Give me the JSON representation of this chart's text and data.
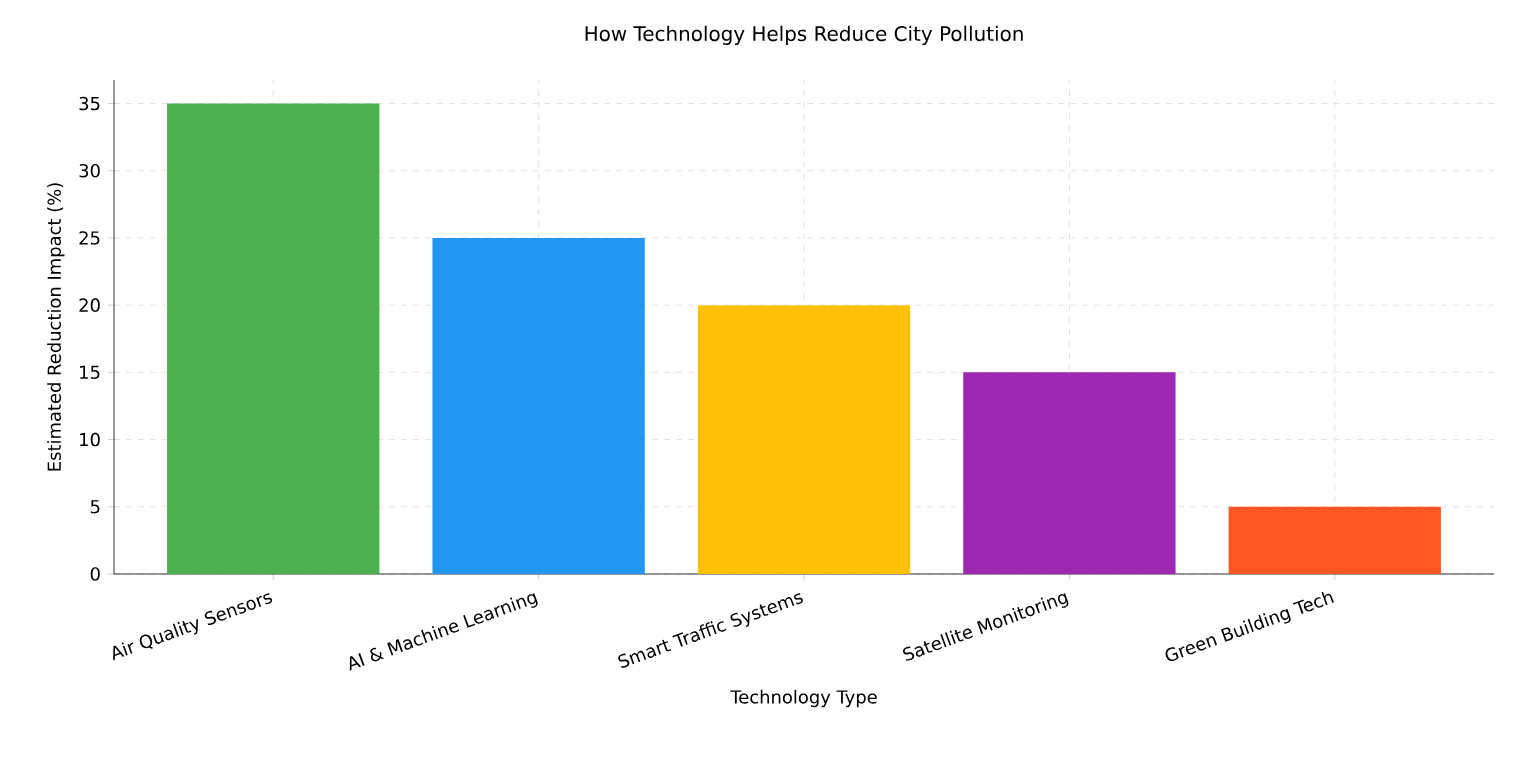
{
  "chart_data": {
    "type": "bar",
    "title": "How Technology Helps Reduce City Pollution",
    "xlabel": "Technology Type",
    "ylabel": "Estimated Reduction Impact (%)",
    "categories": [
      "Air Quality Sensors",
      "AI & Machine Learning",
      "Smart Traffic Systems",
      "Satellite Monitoring",
      "Green Building Tech"
    ],
    "values": [
      35,
      25,
      20,
      15,
      5
    ],
    "colors": [
      "#4caf50",
      "#2196f3",
      "#ffc107",
      "#9c27b0",
      "#ff5722"
    ],
    "ylim": [
      0,
      36.75
    ],
    "yticks": [
      0,
      5,
      10,
      15,
      20,
      25,
      30,
      35
    ],
    "grid": true
  }
}
